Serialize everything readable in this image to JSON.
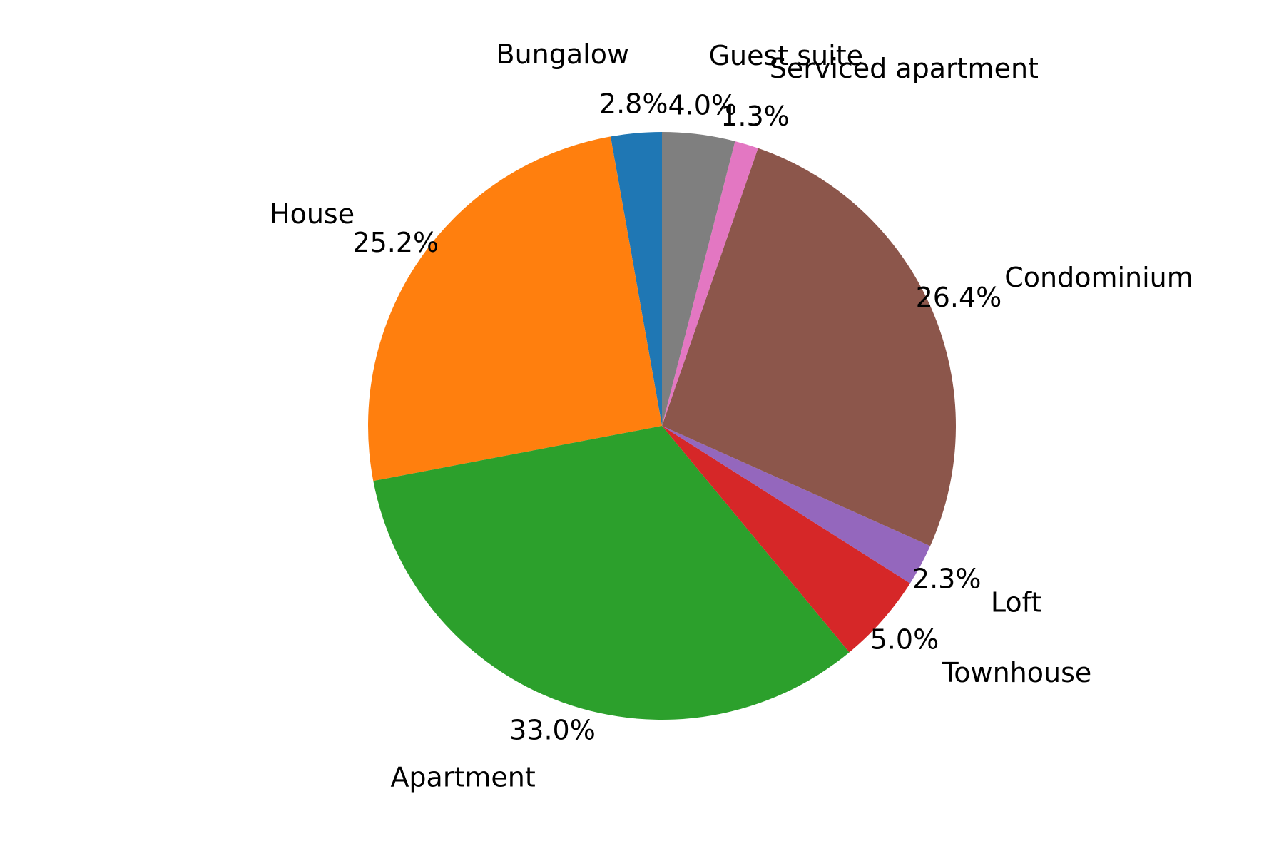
{
  "chart_data": {
    "type": "pie",
    "title": "",
    "start_angle_deg": 90,
    "direction": "counterclockwise",
    "slices": [
      {
        "label": "Bungalow",
        "value": 2.8,
        "pct_label": "2.8%",
        "color": "#1f77b4"
      },
      {
        "label": "House",
        "value": 25.2,
        "pct_label": "25.2%",
        "color": "#ff7f0e"
      },
      {
        "label": "Apartment",
        "value": 33.0,
        "pct_label": "33.0%",
        "color": "#2ca02c"
      },
      {
        "label": "Townhouse",
        "value": 5.0,
        "pct_label": "5.0%",
        "color": "#d62728"
      },
      {
        "label": "Loft",
        "value": 2.3,
        "pct_label": "2.3%",
        "color": "#9467bd"
      },
      {
        "label": "Condominium",
        "value": 26.4,
        "pct_label": "26.4%",
        "color": "#8c564b"
      },
      {
        "label": "Serviced apartment",
        "value": 1.3,
        "pct_label": "1.3%",
        "color": "#e377c2"
      },
      {
        "label": "Guest suite",
        "value": 4.0,
        "pct_label": "4.0%",
        "color": "#7f7f7f"
      }
    ]
  }
}
